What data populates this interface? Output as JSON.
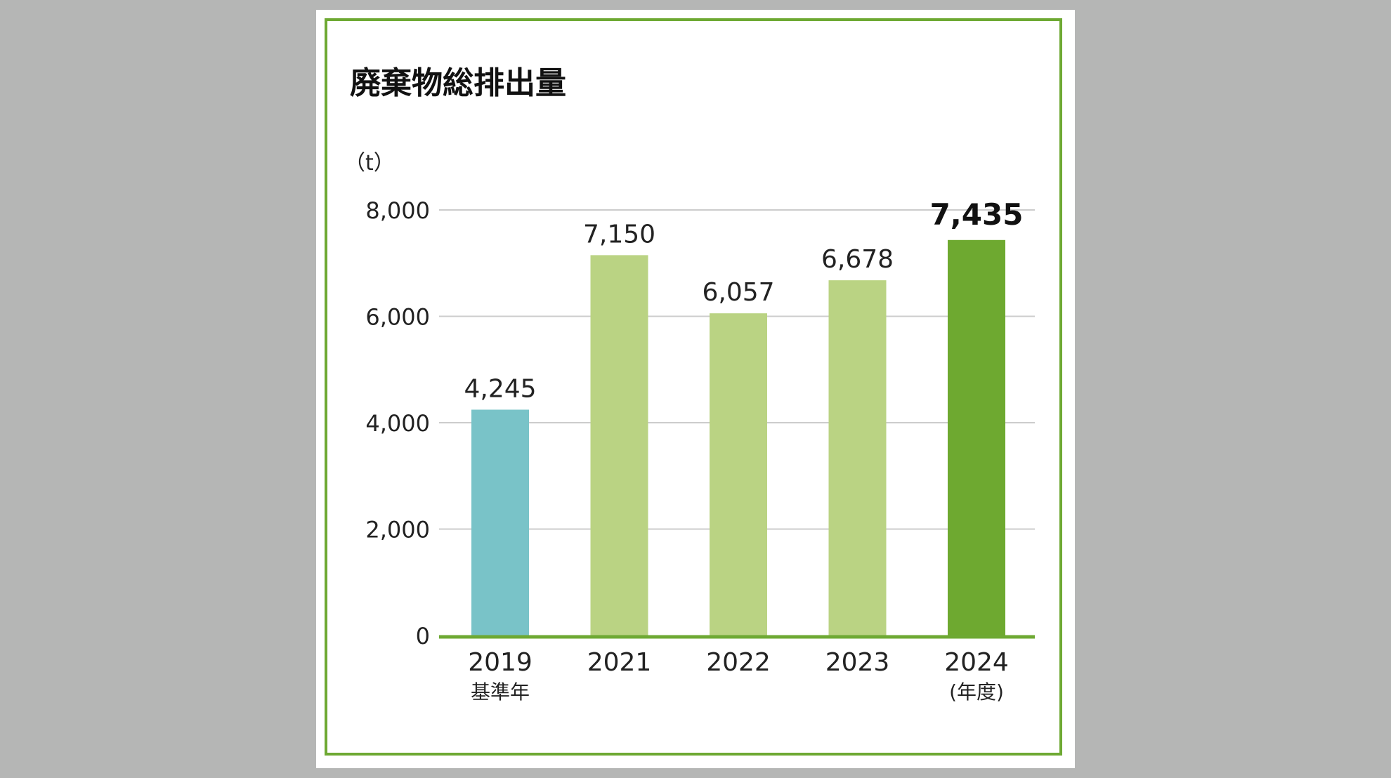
{
  "chart_data": {
    "type": "bar",
    "title": "廃棄物総排出量",
    "unit_label": "（t）",
    "categories": [
      "2019",
      "2021",
      "2022",
      "2023",
      "2024"
    ],
    "category_sublabels": [
      "基準年",
      "",
      "",
      "",
      "(年度)"
    ],
    "values": [
      4245,
      7150,
      6057,
      6678,
      7435
    ],
    "value_labels": [
      "4,245",
      "7,150",
      "6,057",
      "6,678",
      "7,435"
    ],
    "highlight_index": 4,
    "yticks": [
      0,
      2000,
      4000,
      6000,
      8000
    ],
    "ytick_labels": [
      "0",
      "2,000",
      "4,000",
      "6,000",
      "8,000"
    ],
    "ylim": [
      0,
      8000
    ],
    "grid": true,
    "colors": {
      "baseline_bar": "#79c3c8",
      "regular_bar": "#bad383",
      "highlight_bar": "#6ea930",
      "axis": "#6ea933",
      "grid": "#cccccc",
      "frame": "#6ea933"
    }
  }
}
